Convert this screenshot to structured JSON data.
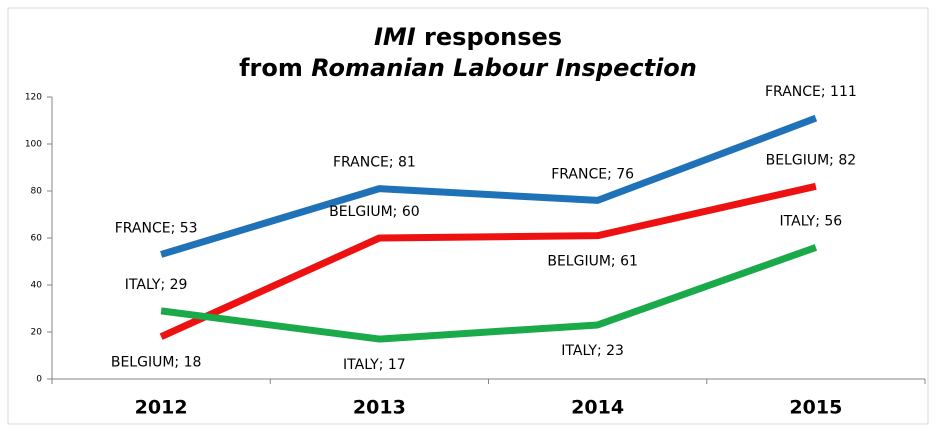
{
  "chart_data": {
    "type": "line",
    "title": [
      [
        {
          "text": "IMI",
          "italic": true
        },
        {
          "text": " responses",
          "italic": false
        }
      ],
      [
        {
          "text": "from ",
          "italic": false
        },
        {
          "text": "Romanian Labour Inspection",
          "italic": true
        }
      ]
    ],
    "categories": [
      "2012",
      "2013",
      "2014",
      "2015"
    ],
    "series": [
      {
        "name": "FRANCE",
        "color": "#1f72b8",
        "values": [
          53,
          81,
          76,
          111
        ],
        "value_labels": [
          "FRANCE; 53",
          "FRANCE; 81",
          "FRANCE; 76",
          "FRANCE; 111"
        ]
      },
      {
        "name": "BELGIUM",
        "color": "#ee1111",
        "values": [
          18,
          60,
          61,
          82
        ],
        "value_labels": [
          "BELGIUM; 18",
          "BELGIUM; 60",
          "BELGIUM; 61",
          "BELGIUM; 82"
        ]
      },
      {
        "name": "ITALY",
        "color": "#1aaa4a",
        "values": [
          29,
          17,
          23,
          56
        ],
        "value_labels": [
          "ITALY; 29",
          "ITALY; 17",
          "ITALY; 23",
          "ITALY; 56"
        ]
      }
    ],
    "ylim": [
      0,
      120
    ],
    "yticks": [
      0,
      20,
      40,
      60,
      80,
      100,
      120
    ],
    "grid": false
  }
}
